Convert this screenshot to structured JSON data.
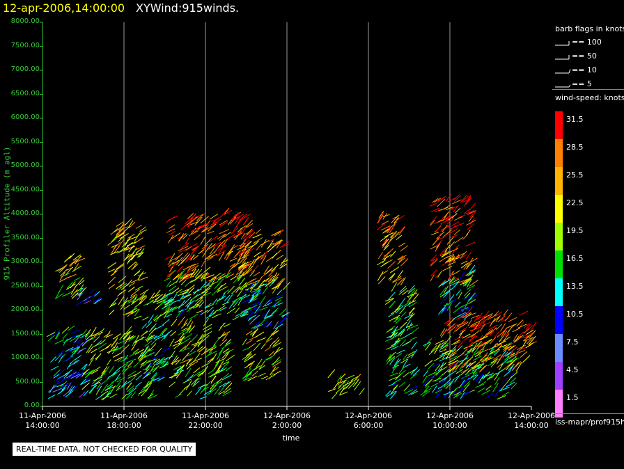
{
  "header": {
    "datetime": "12-apr-2006,14:00:00",
    "product": "XYWind:915winds."
  },
  "chart_data": {
    "type": "scatter",
    "title": "12-apr-2006,14:00:00 XYWind:915winds.",
    "xlabel": "time",
    "ylabel": "915 Profiler Altitude (m agl)",
    "ylim": [
      0,
      8000
    ],
    "xlim_hours": [
      0,
      24
    ],
    "y_ticks": [
      "0.00",
      "500.00",
      "1000.00",
      "1500.00",
      "2000.00",
      "2500.00",
      "3000.00",
      "3500.00",
      "4000.00",
      "4500.00",
      "5000.00",
      "5500.00",
      "6000.00",
      "6500.00",
      "7000.00",
      "7500.00",
      "8000.00"
    ],
    "x_ticks": [
      {
        "date": "11-Apr-2006",
        "time": "14:00:00"
      },
      {
        "date": "11-Apr-2006",
        "time": "18:00:00"
      },
      {
        "date": "11-Apr-2006",
        "time": "22:00:00"
      },
      {
        "date": "12-Apr-2006",
        "time": "2:00:00"
      },
      {
        "date": "12-Apr-2006",
        "time": "6:00:00"
      },
      {
        "date": "12-Apr-2006",
        "time": "10:00:00"
      },
      {
        "date": "12-Apr-2006",
        "time": "14:00:00"
      }
    ],
    "vertical_gridlines_at_ticks": true,
    "clusters": [
      {
        "t0": 0.2,
        "t1": 1.9,
        "z0": 150,
        "z1": 1600,
        "speed": 14
      },
      {
        "t0": 0.6,
        "t1": 1.8,
        "z0": 2200,
        "z1": 3100,
        "speed": 24
      },
      {
        "t0": 1.6,
        "t1": 2.6,
        "z0": 2100,
        "z1": 2350,
        "speed": 12
      },
      {
        "t0": 1.9,
        "t1": 5.3,
        "z0": 100,
        "z1": 1500,
        "speed": 20
      },
      {
        "t0": 3.2,
        "t1": 4.8,
        "z0": 1800,
        "z1": 3800,
        "speed": 25
      },
      {
        "t0": 4.8,
        "t1": 6.0,
        "z0": 500,
        "z1": 2300,
        "speed": 18
      },
      {
        "t0": 6.0,
        "t1": 10.0,
        "z0": 2600,
        "z1": 4000,
        "speed": 31
      },
      {
        "t0": 5.8,
        "t1": 9.8,
        "z0": 1800,
        "z1": 2700,
        "speed": 20
      },
      {
        "t0": 6.2,
        "t1": 9.0,
        "z0": 150,
        "z1": 1700,
        "speed": 22
      },
      {
        "t0": 9.6,
        "t1": 11.8,
        "z0": 2400,
        "z1": 3600,
        "speed": 28
      },
      {
        "t0": 9.6,
        "t1": 11.8,
        "z0": 1600,
        "z1": 2500,
        "speed": 15
      },
      {
        "t0": 9.8,
        "t1": 11.4,
        "z0": 500,
        "z1": 1500,
        "speed": 24
      },
      {
        "t0": 14.0,
        "t1": 15.6,
        "z0": 150,
        "z1": 600,
        "speed": 22
      },
      {
        "t0": 16.4,
        "t1": 17.6,
        "z0": 2500,
        "z1": 4000,
        "speed": 28
      },
      {
        "t0": 16.8,
        "t1": 18.2,
        "z0": 150,
        "z1": 2400,
        "speed": 19
      },
      {
        "t0": 18.5,
        "t1": 23.0,
        "z0": 150,
        "z1": 1300,
        "speed": 18
      },
      {
        "t0": 19.0,
        "t1": 21.0,
        "z0": 2500,
        "z1": 4300,
        "speed": 31
      },
      {
        "t0": 19.4,
        "t1": 21.0,
        "z0": 1800,
        "z1": 2800,
        "speed": 17
      },
      {
        "t0": 19.5,
        "t1": 23.6,
        "z0": 700,
        "z1": 1900,
        "speed": 30
      },
      {
        "t0": 23.6,
        "t1": 24.0,
        "z0": 1200,
        "z1": 1700,
        "speed": 30
      }
    ]
  },
  "legend": {
    "barb_title": "barb flags in knots",
    "barbs": [
      {
        "label": "== 100"
      },
      {
        "label": "== 50"
      },
      {
        "label": "== 10"
      },
      {
        "label": "== 5"
      }
    ],
    "speed_title": "wind-speed: knots",
    "scale": [
      {
        "label": "31.5",
        "color": "#ff0000"
      },
      {
        "label": "28.5",
        "color": "#ff7f00"
      },
      {
        "label": "25.5",
        "color": "#ffb400"
      },
      {
        "label": "22.5",
        "color": "#ffff00"
      },
      {
        "label": "19.5",
        "color": "#a0ff00"
      },
      {
        "label": "16.5",
        "color": "#00e000"
      },
      {
        "label": "13.5",
        "color": "#00ffff"
      },
      {
        "label": "10.5",
        "color": "#0000ff"
      },
      {
        "label": "7.5",
        "color": "#6a8cff"
      },
      {
        "label": "4.5",
        "color": "#a040ff"
      },
      {
        "label": "1.5",
        "color": "#ff80ff"
      }
    ]
  },
  "footer": {
    "source_path": "iss-mapr/prof915h",
    "qc_note": "REAL-TIME DATA, NOT CHECKED FOR QUALITY"
  }
}
